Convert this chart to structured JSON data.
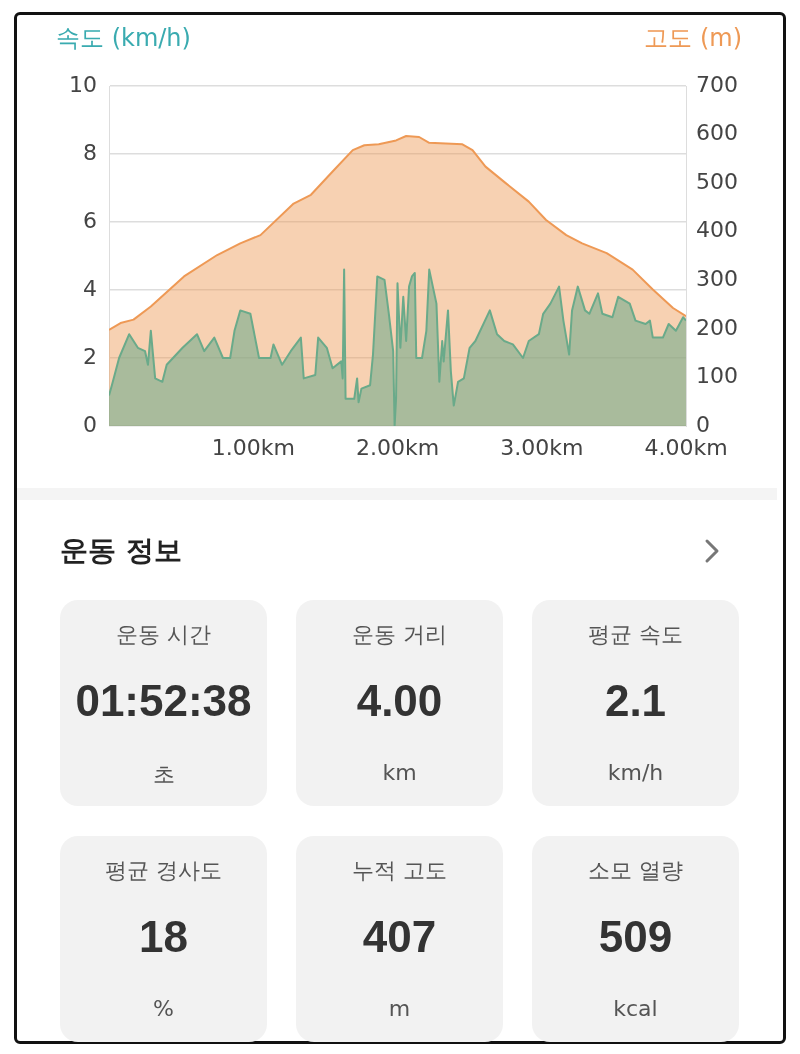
{
  "chart_data": [
    {
      "type": "area",
      "ylabel": "속도 (km/h)",
      "y2label": "고도 (m)",
      "xlim": [
        0,
        4
      ],
      "xticks": [
        {
          "value": 1,
          "label": "1.00km"
        },
        {
          "value": 2,
          "label": "2.00km"
        },
        {
          "value": 3,
          "label": "3.00km"
        },
        {
          "value": 4,
          "label": "4.00km"
        }
      ],
      "ylim": [
        0,
        10
      ],
      "yticks": [
        0,
        2,
        4,
        6,
        8,
        10
      ],
      "y2lim": [
        0,
        700
      ],
      "y2ticks": [
        0,
        100,
        200,
        300,
        400,
        500,
        600,
        700
      ],
      "grid": "y",
      "marker": "none",
      "series": [
        {
          "type": "area",
          "axis": "y2",
          "color": "#ee9955",
          "x": [
            0,
            0.08,
            0.17,
            0.29,
            0.52,
            0.75,
            0.91,
            1.05,
            1.28,
            1.4,
            1.56,
            1.69,
            1.77,
            1.87,
            1.99,
            2.06,
            2.15,
            2.22,
            2.45,
            2.52,
            2.61,
            2.75,
            2.91,
            3.03,
            3.17,
            3.28,
            3.45,
            3.63,
            3.77,
            3.91,
            4
          ],
          "values": [
            198,
            212,
            219,
            246,
            308,
            352,
            376,
            393,
            458,
            476,
            527,
            568,
            578,
            580,
            588,
            597,
            595,
            583,
            580,
            568,
            534,
            500,
            462,
            424,
            393,
            376,
            356,
            322,
            281,
            243,
            226
          ]
        },
        {
          "type": "area",
          "axis": "y",
          "color": "#6aaa8a",
          "x": [
            0,
            0.02,
            0.07,
            0.14,
            0.2,
            0.25,
            0.27,
            0.29,
            0.32,
            0.37,
            0.4,
            0.51,
            0.61,
            0.66,
            0.73,
            0.79,
            0.84,
            0.87,
            0.91,
            0.98,
            1.04,
            1.12,
            1.14,
            1.2,
            1.26,
            1.33,
            1.35,
            1.43,
            1.45,
            1.51,
            1.55,
            1.61,
            1.62,
            1.63,
            1.64,
            1.7,
            1.72,
            1.73,
            1.75,
            1.81,
            1.83,
            1.86,
            1.91,
            1.94,
            1.97,
            1.98,
            1.99,
            2,
            2.02,
            2.04,
            2.06,
            2.08,
            2.1,
            2.12,
            2.13,
            2.17,
            2.2,
            2.22,
            2.27,
            2.29,
            2.31,
            2.32,
            2.35,
            2.37,
            2.39,
            2.42,
            2.46,
            2.5,
            2.54,
            2.64,
            2.69,
            2.74,
            2.8,
            2.87,
            2.91,
            2.98,
            3.01,
            3.06,
            3.12,
            3.15,
            3.19,
            3.21,
            3.25,
            3.3,
            3.33,
            3.39,
            3.42,
            3.49,
            3.53,
            3.61,
            3.65,
            3.72,
            3.75,
            3.77,
            3.84,
            3.88,
            3.93,
            3.98,
            4
          ],
          "values": [
            0.9,
            1.2,
            2,
            2.7,
            2.3,
            2.2,
            1.8,
            2.8,
            1.4,
            1.3,
            1.8,
            2.3,
            2.7,
            2.2,
            2.6,
            2,
            2,
            2.8,
            3.4,
            3.3,
            2,
            2,
            2.4,
            1.8,
            2.2,
            2.6,
            1.4,
            1.5,
            2.6,
            2.3,
            1.7,
            1.9,
            1.4,
            4.6,
            0.8,
            0.8,
            1.4,
            0.7,
            1.1,
            1.2,
            2.1,
            4.4,
            4.3,
            3.3,
            2.2,
            0,
            0.8,
            4.2,
            2.3,
            3.8,
            2.5,
            4.1,
            4.4,
            4.5,
            2,
            2,
            2.8,
            4.6,
            3.6,
            1.3,
            2.5,
            1.9,
            3.4,
            1.6,
            0.6,
            1.3,
            1.4,
            2.3,
            2.5,
            3.4,
            2.7,
            2.5,
            2.4,
            2,
            2.5,
            2.7,
            3.3,
            3.6,
            4.1,
            3.1,
            2.1,
            3.4,
            4.1,
            3.4,
            3.3,
            3.9,
            3.3,
            3.2,
            3.8,
            3.6,
            3.1,
            3,
            3.1,
            2.6,
            2.6,
            3,
            2.8,
            3.2,
            3.1
          ]
        }
      ]
    },
    {
      "type": "other",
      "title": "운동 정보",
      "annotations": [
        "운동 시간",
        "01:52:38",
        "초",
        "운동 거리",
        "4.00",
        "km",
        "평균 속도",
        "2.1",
        "km/h",
        "평균 경사도",
        "18",
        "%",
        "누적 고도",
        "407",
        "m",
        "소모 열량",
        "509",
        "kcal"
      ]
    }
  ]
}
